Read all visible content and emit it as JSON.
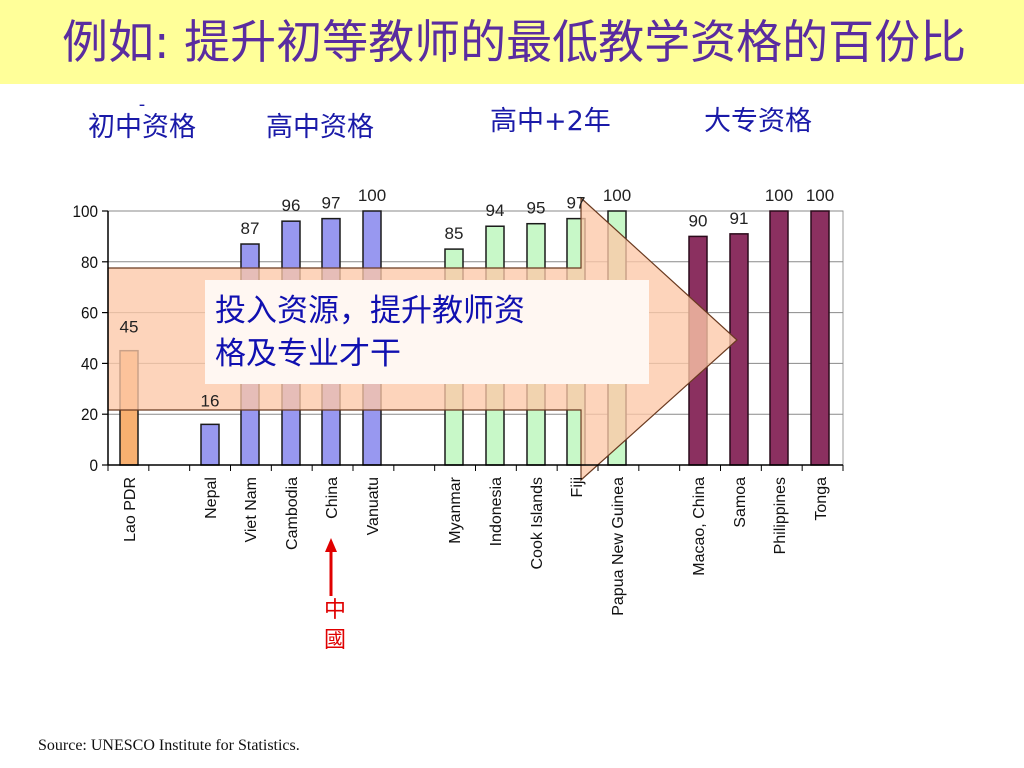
{
  "title": "例如: 提升初等教师的最低教学资格的百份比",
  "source": "Source: UNESCO Institute for Statistics.",
  "callout": {
    "line1": "投入资源，提升教师资",
    "line2": "格及专业才干"
  },
  "china_marker": "中國",
  "groups": [
    {
      "label": "-\n初中资格",
      "color": "#f8b070"
    },
    {
      "label": "高中资格",
      "color": "#9898f0"
    },
    {
      "label": "高中+2年",
      "color": "#c8f8c8"
    },
    {
      "label": "大专资格",
      "color": "#8b3060"
    }
  ],
  "colors": {
    "arrow_fill": "#fcc8a8",
    "arrow_stroke": "#6a3a20",
    "title_bg": "#ffff99",
    "title_text": "#5a2ca0",
    "group_label": "#1a1aa8",
    "marker": "#e00000"
  },
  "chart_data": {
    "type": "bar",
    "ylim": [
      0,
      100
    ],
    "yticks": [
      0,
      20,
      40,
      60,
      80,
      100
    ],
    "grid": true,
    "bars": [
      {
        "category": "Lao PDR",
        "value": 45,
        "group": 0
      },
      {
        "category": "Nepal",
        "value": 16,
        "group": 1
      },
      {
        "category": "Viet Nam",
        "value": 87,
        "group": 1
      },
      {
        "category": "Cambodia",
        "value": 96,
        "group": 1
      },
      {
        "category": "China",
        "value": 97,
        "group": 1
      },
      {
        "category": "Vanuatu",
        "value": 100,
        "group": 1
      },
      {
        "category": "Myanmar",
        "value": 85,
        "group": 2
      },
      {
        "category": "Indonesia",
        "value": 94,
        "group": 2
      },
      {
        "category": "Cook Islands",
        "value": 95,
        "group": 2
      },
      {
        "category": "Fiji",
        "value": 97,
        "group": 2
      },
      {
        "category": "Papua New Guinea",
        "value": 100,
        "group": 2
      },
      {
        "category": "Macao, China",
        "value": 90,
        "group": 3
      },
      {
        "category": "Samoa",
        "value": 91,
        "group": 3
      },
      {
        "category": "Philippines",
        "value": 100,
        "group": 3
      },
      {
        "category": "Tonga",
        "value": 100,
        "group": 3
      }
    ]
  }
}
